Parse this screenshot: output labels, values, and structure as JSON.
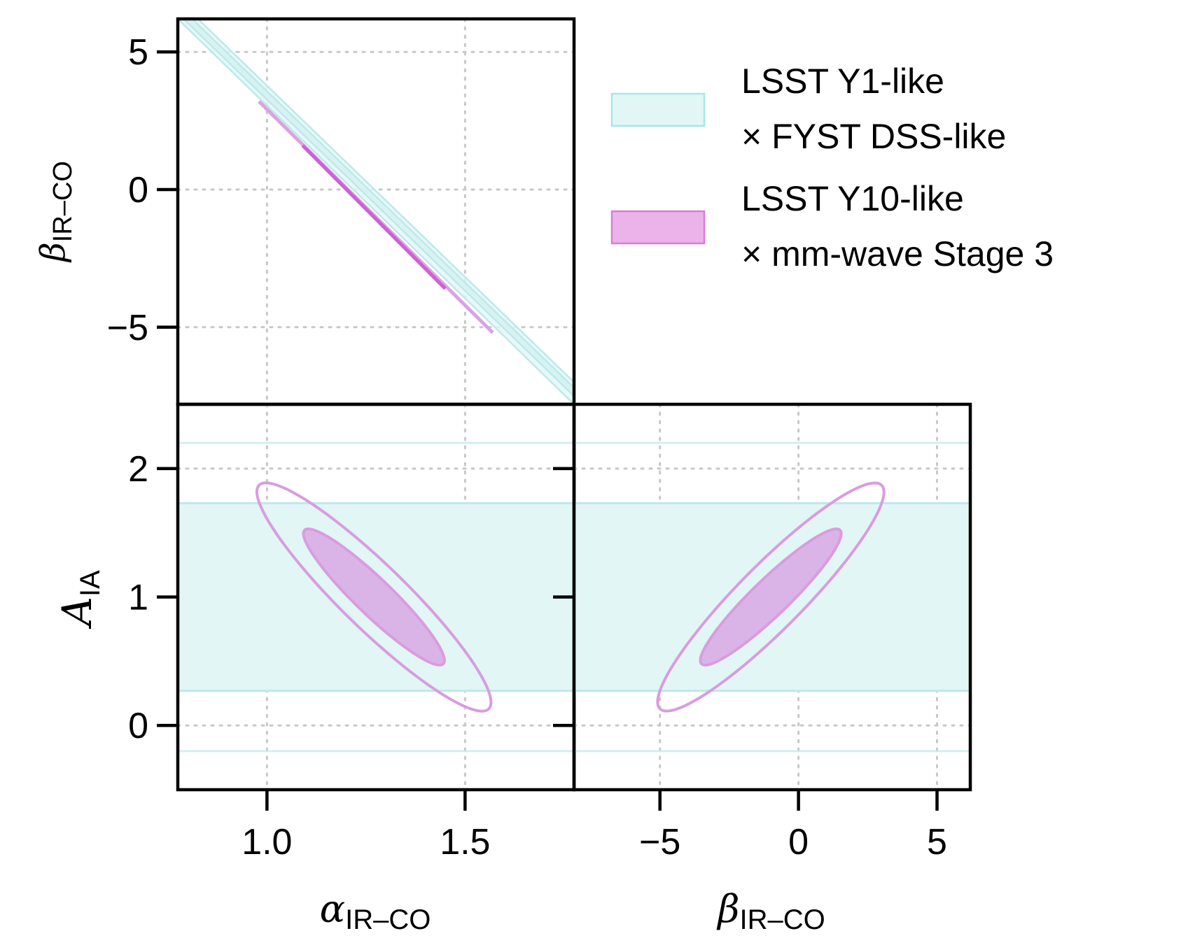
{
  "chart_data": {
    "type": "scatter",
    "subtype": "corner-plot-confidence-contours",
    "colors": {
      "series_1": "#7fdcdc",
      "series_1_fill": "#e2f6f6",
      "series_2": "#d060d0",
      "series_2_fill": "#d8a8e4",
      "grid": "#c8c8c8"
    },
    "legend": {
      "placement": "top-right",
      "entries": [
        {
          "series": "series_1",
          "line1": "LSST Y1-like",
          "line2": "× FYST DSS-like"
        },
        {
          "series": "series_2",
          "line1": "LSST Y10-like",
          "line2": "× mm-wave Stage 3"
        }
      ]
    },
    "panels": [
      {
        "id": "alpha-beta",
        "xlabel_symbol": "α",
        "xlabel_sub": "IR–CO",
        "ylabel_symbol": "β",
        "ylabel_sub": "IR–CO",
        "xlim": [
          0.775,
          1.775
        ],
        "ylim": [
          -7.8,
          6.2
        ],
        "yticks": [
          5,
          0,
          -5
        ],
        "ytick_labels": [
          "5",
          "0",
          "−5"
        ],
        "grid": true,
        "series_1_band": {
          "outer_lower": [
            [
              0.775,
              6.2
            ],
            [
              1.775,
              -7.8
            ]
          ],
          "outer_upper": [
            [
              0.775,
              6.9
            ],
            [
              1.775,
              -7.0
            ]
          ],
          "inner_lower": [
            [
              0.775,
              6.4
            ],
            [
              1.775,
              -7.5
            ]
          ],
          "inner_upper": [
            [
              0.775,
              6.7
            ],
            [
              1.775,
              -7.2
            ]
          ]
        },
        "series_2_segment_95": [
          [
            0.98,
            3.2
          ],
          [
            1.57,
            -5.2
          ]
        ],
        "series_2_segment_68": [
          [
            1.09,
            1.6
          ],
          [
            1.45,
            -3.6
          ]
        ]
      },
      {
        "id": "alpha-aia",
        "xlabel_symbol": "α",
        "xlabel_sub": "IR–CO",
        "ylabel_symbol": "A",
        "ylabel_sub": "IA",
        "xlim": [
          0.775,
          1.775
        ],
        "ylim": [
          -0.5,
          2.5
        ],
        "xticks": [
          1.0,
          1.5
        ],
        "xtick_labels": [
          "1.0",
          "1.5"
        ],
        "yticks": [
          2,
          1,
          0
        ],
        "ytick_labels": [
          "2",
          "1",
          "0"
        ],
        "grid": true,
        "series_1": {
          "inner_band": [
            0.27,
            1.73
          ],
          "outer_band": [
            -0.2,
            2.2
          ]
        },
        "series_2": {
          "center": [
            1.27,
            1.0
          ],
          "ellipse_68": {
            "half_length_x": 0.175,
            "half_length_y": 0.52
          },
          "ellipse_95": {
            "half_length_x": 0.29,
            "half_length_y": 0.87
          }
        }
      },
      {
        "id": "beta-aia",
        "xlabel_symbol": "β",
        "xlabel_sub": "IR–CO",
        "xlim": [
          -8.1,
          6.2
        ],
        "ylim": [
          -0.5,
          2.5
        ],
        "xticks": [
          -5,
          0,
          5
        ],
        "xtick_labels": [
          "−5",
          "0",
          "5"
        ],
        "grid": true,
        "series_1": {
          "inner_band": [
            0.27,
            1.73
          ],
          "outer_band": [
            -0.2,
            2.2
          ]
        },
        "series_2": {
          "center": [
            -1.0,
            1.0
          ],
          "ellipse_68": {
            "half_length_x": 2.5,
            "half_length_y": 0.52
          },
          "ellipse_95": {
            "half_length_x": 4.0,
            "half_length_y": 0.87
          }
        }
      }
    ]
  }
}
